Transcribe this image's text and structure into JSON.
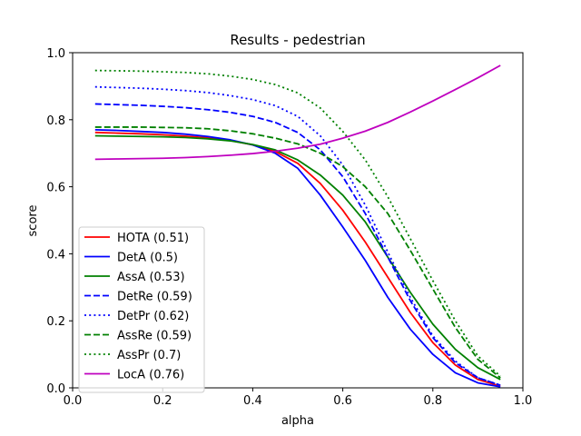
{
  "chart_data": {
    "type": "line",
    "title": "Results - pedestrian",
    "xlabel": "alpha",
    "ylabel": "score",
    "xlim": [
      0.0,
      1.0
    ],
    "ylim": [
      0.0,
      1.0
    ],
    "xticks": [
      "0.0",
      "0.2",
      "0.4",
      "0.6",
      "0.8",
      "1.0"
    ],
    "yticks": [
      "0.0",
      "0.2",
      "0.4",
      "0.6",
      "0.8",
      "1.0"
    ],
    "grid": false,
    "legend_position": "lower-left",
    "x": [
      0.05,
      0.1,
      0.15,
      0.2,
      0.25,
      0.3,
      0.35,
      0.4,
      0.45,
      0.5,
      0.55,
      0.6,
      0.65,
      0.7,
      0.75,
      0.8,
      0.85,
      0.9,
      0.95
    ],
    "series": [
      {
        "name": "HOTA (0.51)",
        "color": "#ff0000",
        "dash": "solid",
        "values": [
          0.762,
          0.76,
          0.758,
          0.755,
          0.751,
          0.746,
          0.738,
          0.725,
          0.705,
          0.67,
          0.61,
          0.53,
          0.435,
          0.33,
          0.225,
          0.135,
          0.068,
          0.025,
          0.005
        ]
      },
      {
        "name": "DetA (0.5)",
        "color": "#0000ff",
        "dash": "solid",
        "values": [
          0.77,
          0.768,
          0.765,
          0.762,
          0.757,
          0.75,
          0.74,
          0.725,
          0.7,
          0.655,
          0.575,
          0.48,
          0.38,
          0.27,
          0.175,
          0.1,
          0.045,
          0.015,
          0.003
        ]
      },
      {
        "name": "AssA (0.53)",
        "color": "#008000",
        "dash": "solid",
        "values": [
          0.752,
          0.751,
          0.75,
          0.749,
          0.747,
          0.743,
          0.737,
          0.726,
          0.71,
          0.68,
          0.635,
          0.575,
          0.495,
          0.39,
          0.285,
          0.19,
          0.115,
          0.06,
          0.025
        ]
      },
      {
        "name": "DetRe (0.59)",
        "color": "#0000ff",
        "dash": "dashed",
        "values": [
          0.847,
          0.845,
          0.843,
          0.84,
          0.836,
          0.83,
          0.822,
          0.81,
          0.792,
          0.762,
          0.71,
          0.63,
          0.52,
          0.39,
          0.26,
          0.15,
          0.075,
          0.03,
          0.008
        ]
      },
      {
        "name": "DetPr (0.62)",
        "color": "#0000ff",
        "dash": "dotted",
        "values": [
          0.898,
          0.896,
          0.894,
          0.891,
          0.887,
          0.881,
          0.872,
          0.86,
          0.842,
          0.81,
          0.752,
          0.665,
          0.545,
          0.405,
          0.27,
          0.155,
          0.08,
          0.03,
          0.008
        ]
      },
      {
        "name": "AssRe (0.59)",
        "color": "#008000",
        "dash": "dashed",
        "values": [
          0.778,
          0.778,
          0.778,
          0.777,
          0.776,
          0.773,
          0.767,
          0.758,
          0.745,
          0.728,
          0.7,
          0.66,
          0.6,
          0.52,
          0.41,
          0.295,
          0.18,
          0.085,
          0.03
        ]
      },
      {
        "name": "AssPr (0.7)",
        "color": "#008000",
        "dash": "dotted",
        "values": [
          0.947,
          0.946,
          0.945,
          0.943,
          0.941,
          0.937,
          0.93,
          0.92,
          0.905,
          0.88,
          0.835,
          0.765,
          0.68,
          0.57,
          0.445,
          0.32,
          0.2,
          0.095,
          0.035
        ]
      },
      {
        "name": "LocA (0.76)",
        "color": "#bf00bf",
        "dash": "solid",
        "values": [
          0.682,
          0.683,
          0.684,
          0.685,
          0.687,
          0.69,
          0.694,
          0.699,
          0.706,
          0.715,
          0.727,
          0.745,
          0.766,
          0.792,
          0.823,
          0.856,
          0.89,
          0.925,
          0.962
        ]
      }
    ]
  }
}
